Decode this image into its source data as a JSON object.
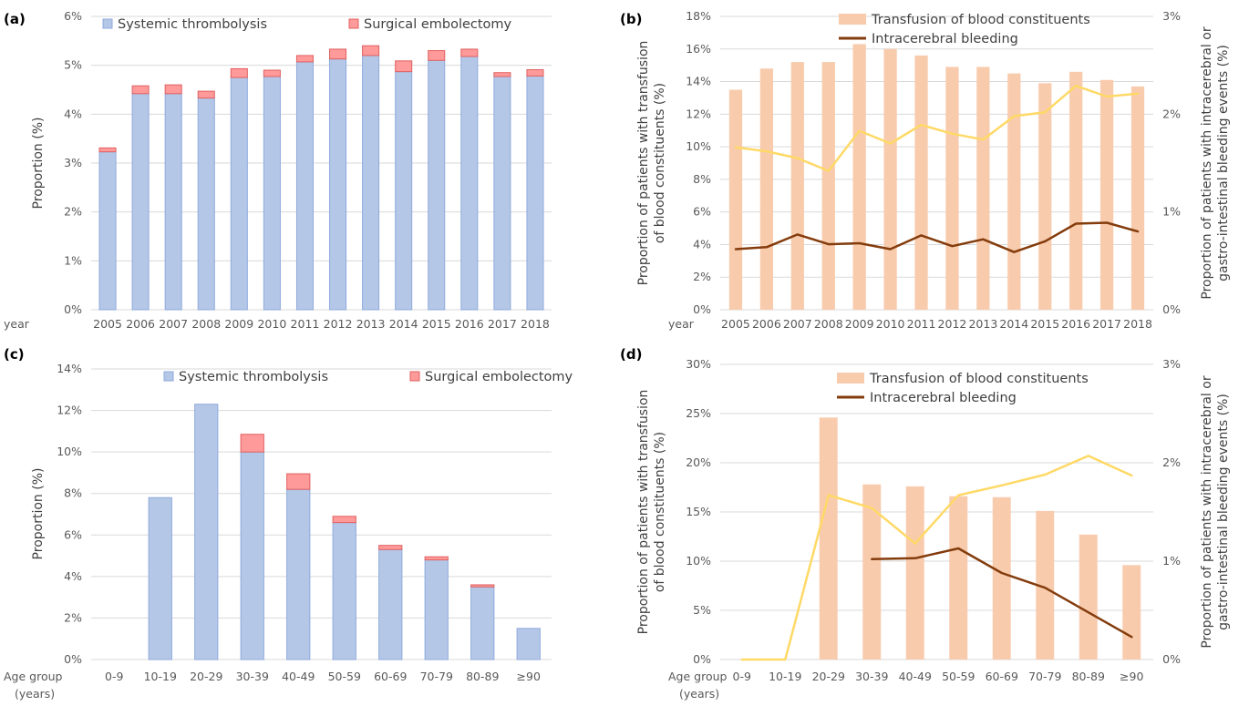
{
  "colors": {
    "thrombolysis_fill": "#b4c7e7",
    "thrombolysis_edge": "#8faadc",
    "embolectomy_fill": "#ff9a9a",
    "embolectomy_edge": "#e06060",
    "transfusion_fill": "#f8cbad",
    "bleeding_line": "#843c0c",
    "second_line": "#ffd966",
    "grid": "#d9d9d9"
  },
  "chart_data": [
    {
      "panel": "(a)",
      "type": "bar",
      "stacked": true,
      "x_axis_label": "year",
      "categories": [
        "2005",
        "2006",
        "2007",
        "2008",
        "2009",
        "2010",
        "2011",
        "2012",
        "2013",
        "2014",
        "2015",
        "2016",
        "2017",
        "2018"
      ],
      "series": [
        {
          "name": "Systemic thrombolysis",
          "values": [
            3.23,
            4.42,
            4.42,
            4.33,
            4.75,
            4.77,
            5.07,
            5.13,
            5.2,
            4.87,
            5.1,
            5.18,
            4.77,
            4.78
          ]
        },
        {
          "name": "Surgical embolectomy",
          "values": [
            0.08,
            0.16,
            0.18,
            0.14,
            0.18,
            0.13,
            0.13,
            0.2,
            0.2,
            0.22,
            0.2,
            0.15,
            0.08,
            0.13
          ]
        }
      ],
      "ylabel": "Proportion (%)",
      "ylim": [
        0,
        6
      ],
      "yticks": [
        "0%",
        "1%",
        "2%",
        "3%",
        "4%",
        "5%",
        "6%"
      ],
      "grid": true,
      "legend": "top"
    },
    {
      "panel": "(b)",
      "type": "bar+line",
      "x_axis_label": "year",
      "categories": [
        "2005",
        "2006",
        "2007",
        "2008",
        "2009",
        "2010",
        "2011",
        "2012",
        "2013",
        "2014",
        "2015",
        "2016",
        "2017",
        "2018"
      ],
      "series": [
        {
          "name": "Transfusion of blood constituents",
          "type": "bar",
          "axis": "left",
          "values": [
            13.5,
            14.8,
            15.2,
            15.2,
            16.3,
            16.0,
            15.6,
            14.9,
            14.9,
            14.5,
            13.9,
            14.6,
            14.1,
            13.7
          ]
        },
        {
          "name": "Intracerebral bleeding",
          "type": "line",
          "axis": "right",
          "values": [
            0.62,
            0.64,
            0.77,
            0.67,
            0.68,
            0.62,
            0.76,
            0.65,
            0.72,
            0.59,
            0.7,
            0.88,
            0.89,
            0.8
          ]
        },
        {
          "type": "line",
          "axis": "right",
          "values": [
            1.66,
            1.62,
            1.55,
            1.42,
            1.83,
            1.7,
            1.89,
            1.8,
            1.74,
            1.98,
            2.02,
            2.29,
            2.18,
            2.21
          ]
        }
      ],
      "ylabel": "Proportion of patients with transfusion of blood constituents (%)",
      "ylabel_lines": [
        "Proportion of patients with transfusion",
        "of blood constituents (%)"
      ],
      "ylim": [
        0,
        18
      ],
      "yticks": [
        "0%",
        "2%",
        "4%",
        "6%",
        "8%",
        "10%",
        "12%",
        "14%",
        "16%",
        "18%"
      ],
      "y2label": "Proportion of patients with intracerebral or gastro-intestinal bleeding events (%)",
      "y2label_lines": [
        "Proportion of patients with intracerebral or",
        "gastro-intestinal bleeding events (%)"
      ],
      "y2lim": [
        0,
        3
      ],
      "y2ticks": [
        "0%",
        "1%",
        "2%",
        "3%"
      ],
      "grid": true,
      "legend": "top"
    },
    {
      "panel": "(c)",
      "type": "bar",
      "stacked": true,
      "x_axis_label": [
        "Age group",
        "(years)"
      ],
      "categories": [
        "0-9",
        "10-19",
        "20-29",
        "30-39",
        "40-49",
        "50-59",
        "60-69",
        "70-79",
        "80-89",
        "≥90"
      ],
      "series": [
        {
          "name": "Systemic thrombolysis",
          "values": [
            0,
            7.8,
            12.3,
            10.0,
            8.2,
            6.6,
            5.3,
            4.8,
            3.5,
            1.5
          ]
        },
        {
          "name": "Surgical embolectomy",
          "values": [
            0,
            0,
            0,
            0.85,
            0.75,
            0.3,
            0.2,
            0.15,
            0.1,
            0
          ]
        }
      ],
      "ylabel": "Proportion (%)",
      "ylim": [
        0,
        14
      ],
      "yticks": [
        "0%",
        "2%",
        "4%",
        "6%",
        "8%",
        "10%",
        "12%",
        "14%"
      ],
      "grid": true,
      "legend": "top"
    },
    {
      "panel": "(d)",
      "type": "bar+line",
      "x_axis_label": [
        "Age group",
        "(years)"
      ],
      "categories": [
        "0-9",
        "10-19",
        "20-29",
        "30-39",
        "40-49",
        "50-59",
        "60-69",
        "70-79",
        "80-89",
        "≥90"
      ],
      "series": [
        {
          "name": "Transfusion of blood constituents",
          "type": "bar",
          "axis": "left",
          "values": [
            0,
            0,
            24.6,
            17.8,
            17.6,
            16.6,
            16.5,
            15.1,
            12.7,
            9.6
          ]
        },
        {
          "name": "Intracerebral bleeding",
          "type": "line",
          "axis": "right",
          "values": [
            null,
            null,
            null,
            1.02,
            1.03,
            1.13,
            0.88,
            0.73,
            0.48,
            0.23
          ]
        },
        {
          "type": "line",
          "axis": "right",
          "values": [
            0,
            0,
            1.67,
            1.54,
            1.18,
            1.67,
            1.77,
            1.88,
            2.07,
            1.87
          ]
        }
      ],
      "ylabel": "Proportion of patients with transfusion of blood constituents (%)",
      "ylabel_lines": [
        "Proportion of patients with transfusion",
        "of blood constituents (%)"
      ],
      "ylim": [
        0,
        30
      ],
      "yticks": [
        "0%",
        "5%",
        "10%",
        "15%",
        "20%",
        "25%",
        "30%"
      ],
      "y2label": "Proportion of patients with intracerebral or gastro-intestinal bleeding events (%)",
      "y2label_lines": [
        "Proportion of patients with intracerebral or",
        "gastro-intestinal bleeding events (%)"
      ],
      "y2lim": [
        0,
        3
      ],
      "y2ticks": [
        "0%",
        "1%",
        "2%",
        "3%"
      ],
      "grid": true,
      "legend": "top"
    }
  ]
}
